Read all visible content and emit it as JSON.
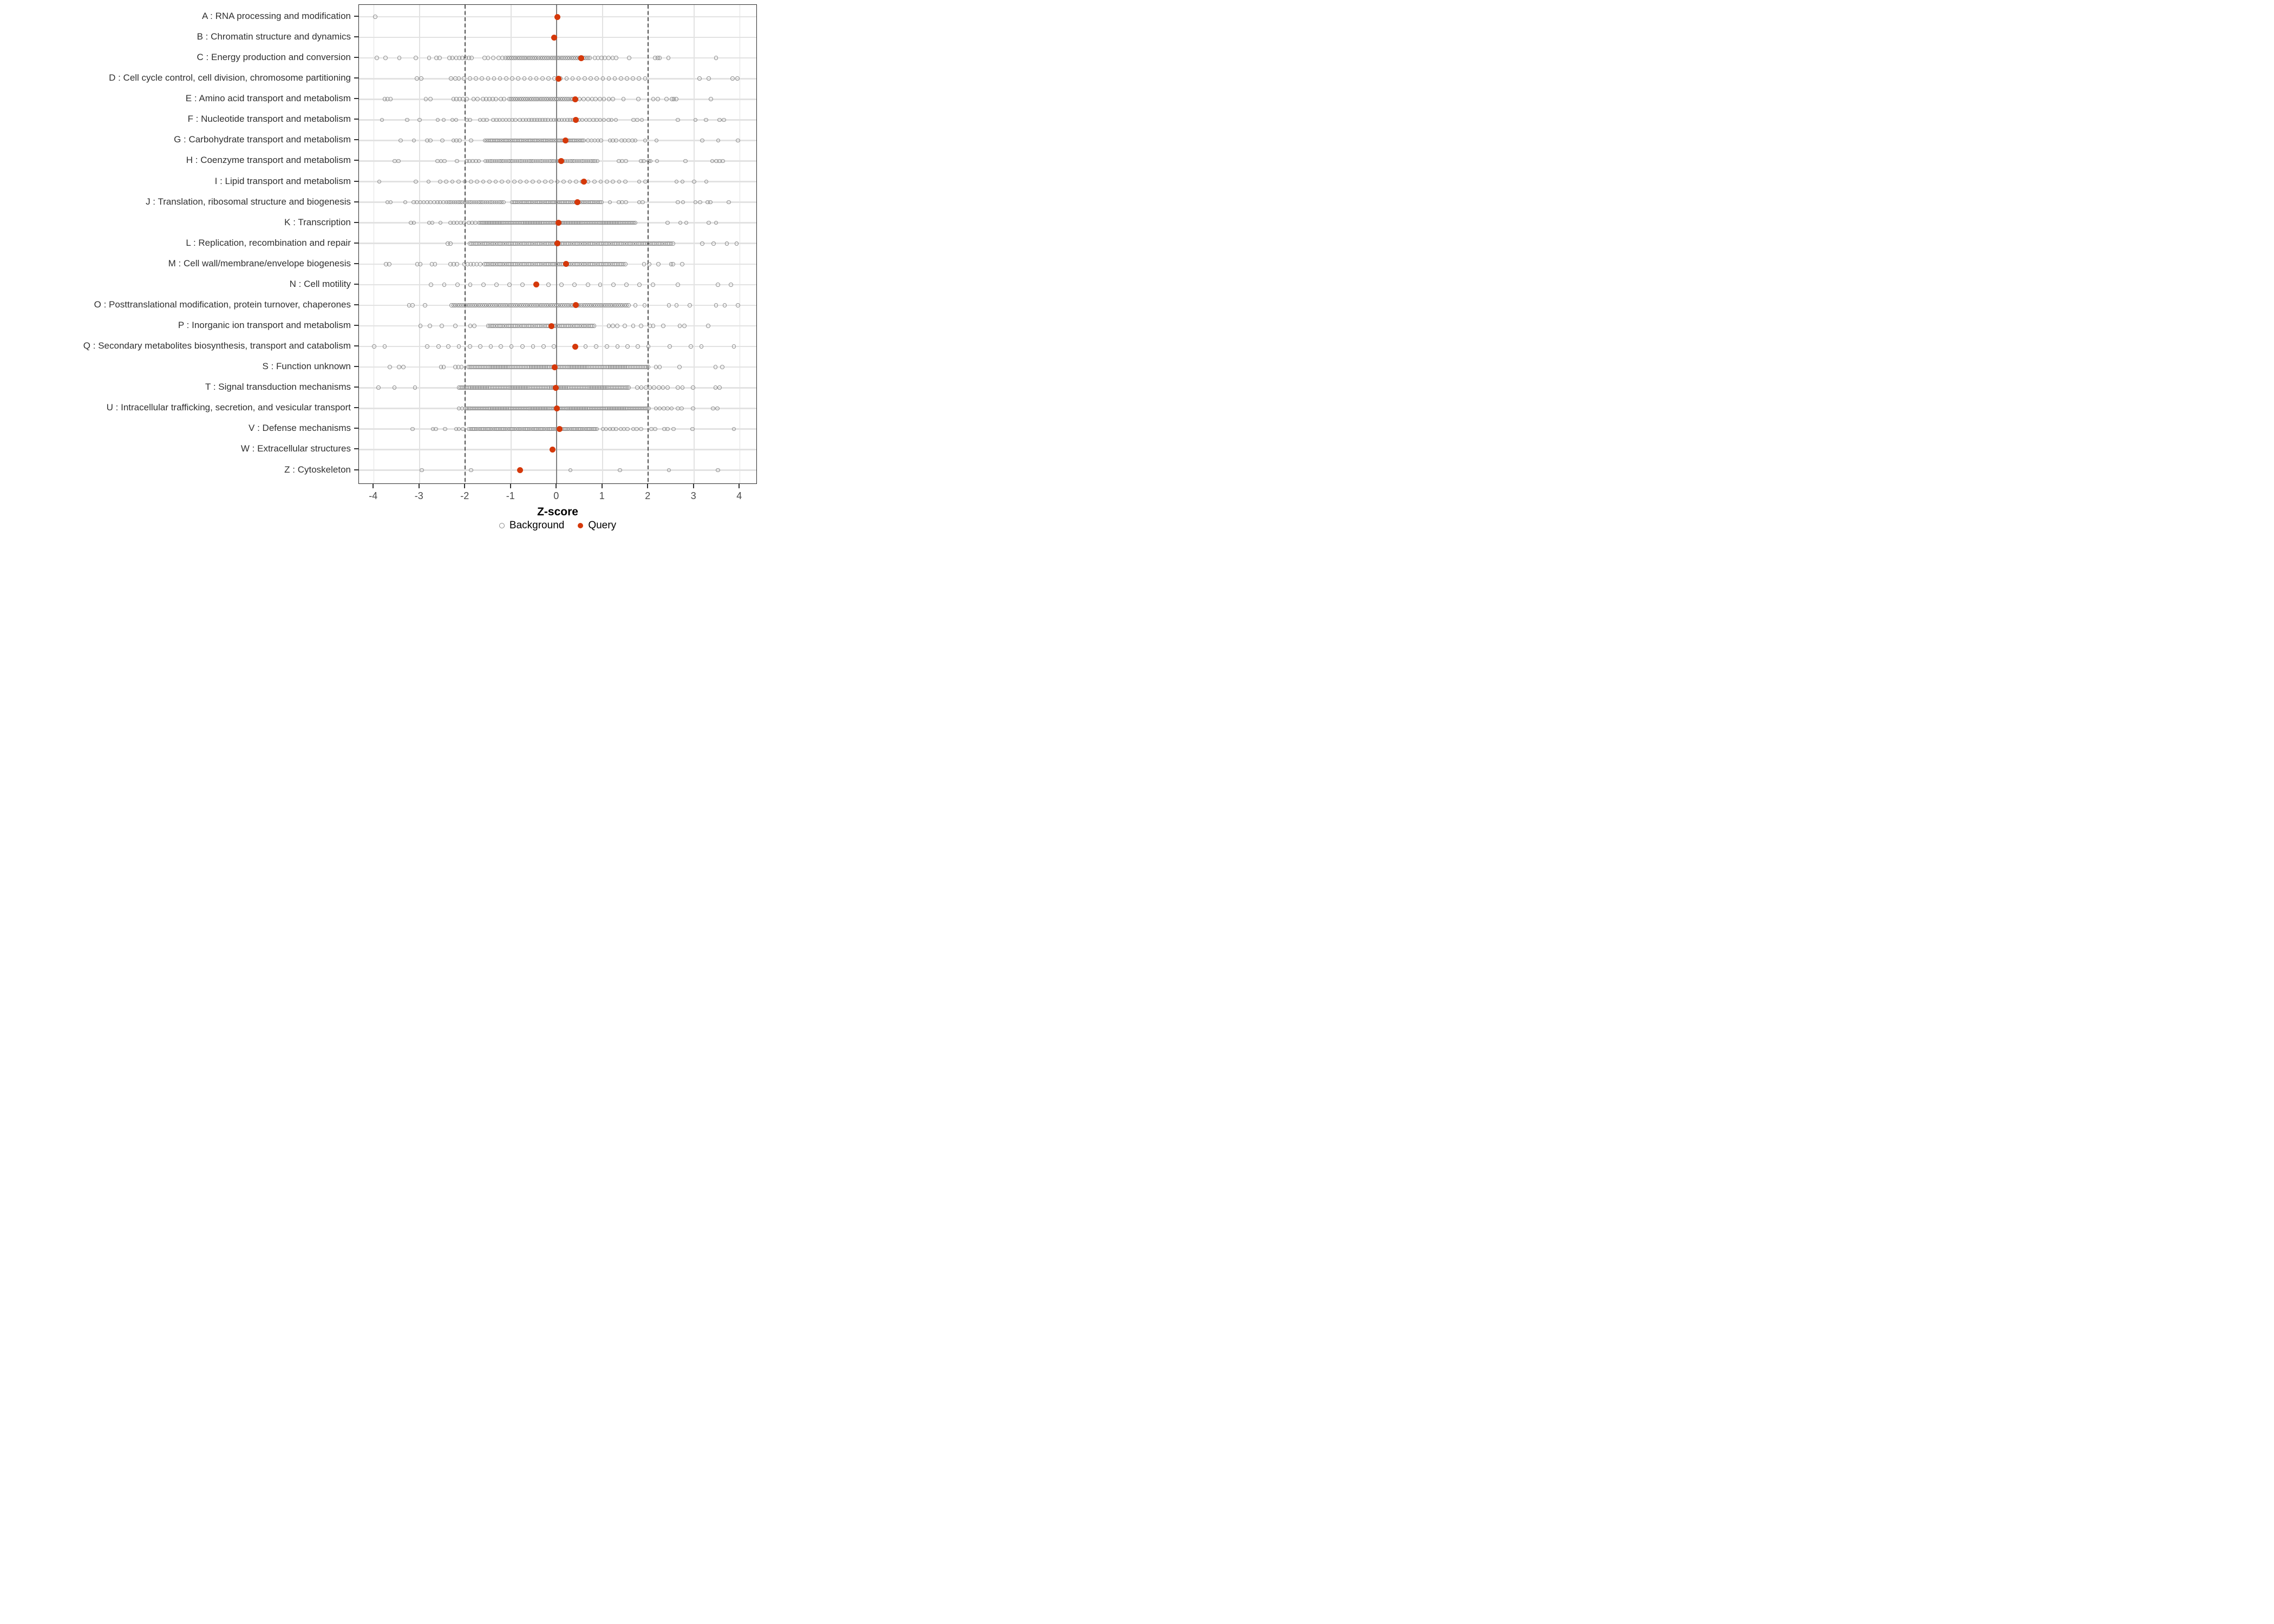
{
  "legend": {
    "background_label": "Background",
    "query_label": "Query"
  },
  "colors": {
    "query": "#d5380a",
    "background_stroke": "#8b8b8b",
    "grid": "#e2e2e2",
    "zero_line": "#808080",
    "dashed_line": "#4f4f4f",
    "panel_border": "#2b2b2b",
    "tick_text": "#4a4a4a",
    "category_text": "#303030"
  },
  "chart_data": {
    "type": "scatter",
    "subtype": "horizontal-strip-dotplot",
    "xlabel": "Z-score",
    "x_ticks": [
      -4,
      -3,
      -2,
      -1,
      0,
      1,
      2,
      3,
      4
    ],
    "x_domain": [
      -4.32,
      4.39
    ],
    "grid": "on",
    "legend_position": "bottom-center",
    "reference_lines": {
      "solid_at": 0,
      "dashed_at": [
        -2,
        2
      ]
    },
    "series_names": [
      "Background",
      "Query"
    ],
    "rows": [
      {
        "label": "A : RNA processing and modification",
        "query": 0.01,
        "bg": [
          -3.97
        ],
        "bg_runs": []
      },
      {
        "label": "B : Chromatin structure and dynamics",
        "query": -0.06,
        "bg": [],
        "bg_runs": []
      },
      {
        "label": "C : Energy production and conversion",
        "query": 0.53,
        "bg": [
          -3.93,
          -3.74,
          -3.44,
          -3.08,
          -2.79,
          -2.63,
          -2.56,
          -2.35,
          -2.28,
          -2.2,
          -2.13,
          -2.06,
          -1.99,
          -1.92,
          -1.86,
          -1.58,
          -1.5,
          -1.39,
          -1.27,
          -1.19,
          0.83,
          0.9,
          0.98,
          1.05,
          1.13,
          1.22,
          1.3,
          1.58,
          2.15,
          2.21,
          2.25,
          2.44,
          3.48
        ],
        "bg_runs": [
          [
            -1.12,
            0.76,
            0.045
          ]
        ]
      },
      {
        "label": "D : Cell cycle control, cell division, chromosome partitioning",
        "query": 0.04,
        "bg": [
          -3.06,
          -2.96,
          -2.31,
          -2.22,
          -2.14,
          3.12,
          3.32,
          3.84,
          3.95
        ],
        "bg_runs": [
          [
            -2.03,
            1.99,
            0.132
          ]
        ]
      },
      {
        "label": "E : Amino acid transport and metabolism",
        "query": 0.4,
        "bg": [
          -3.76,
          -3.7,
          -3.63,
          -2.86,
          -2.76,
          -2.26,
          -2.19,
          -2.12,
          -2.05,
          -1.97,
          -1.82,
          -1.73,
          -1.61,
          -1.54,
          -1.47,
          -1.4,
          -1.33,
          -1.22,
          -1.15,
          0.5,
          0.59,
          0.68,
          0.77,
          0.85,
          0.94,
          1.03,
          1.14,
          1.23,
          1.46,
          1.78,
          2.11,
          2.21,
          2.4,
          2.52,
          2.56,
          2.61,
          3.37
        ],
        "bg_runs": [
          [
            -1.04,
            0.39,
            0.045
          ]
        ]
      },
      {
        "label": "F : Nucleotide transport and metabolism",
        "query": 0.42,
        "bg": [
          -3.82,
          -3.27,
          -3.0,
          -2.6,
          -2.47,
          -2.28,
          -2.2,
          -1.97,
          -1.9,
          -1.68,
          -1.6,
          -1.53,
          -1.39,
          -1.32,
          -1.25,
          -1.18,
          -1.11,
          -1.04,
          -0.97,
          -0.9,
          -0.81,
          -0.74,
          0.49,
          0.56,
          0.64,
          0.72,
          0.8,
          0.87,
          0.95,
          1.03,
          1.13,
          1.2,
          1.29,
          1.68,
          1.76,
          1.86,
          2.65,
          3.03,
          3.26,
          3.56,
          3.65
        ],
        "bg_runs": [
          [
            -0.67,
            0.35,
            0.06
          ]
        ]
      },
      {
        "label": "G : Carbohydrate transport and metabolism",
        "query": 0.19,
        "bg": [
          -3.41,
          -3.12,
          -2.83,
          -2.76,
          -2.5,
          -2.26,
          -2.19,
          -2.12,
          -1.87,
          0.68,
          0.76,
          0.83,
          0.9,
          0.97,
          1.16,
          1.23,
          1.3,
          1.42,
          1.49,
          1.57,
          1.65,
          1.72,
          1.93,
          2.18,
          3.18,
          3.53,
          3.96
        ],
        "bg_runs": [
          [
            -1.57,
            0.59,
            0.04
          ]
        ]
      },
      {
        "label": "H : Coenzyme transport and metabolism",
        "query": 0.1,
        "bg": [
          -3.54,
          -3.46,
          -2.61,
          -2.53,
          -2.45,
          -2.18,
          -1.97,
          -1.91,
          -1.84,
          -1.77,
          -1.7,
          1.36,
          1.43,
          1.51,
          1.84,
          1.9,
          2.01,
          2.05,
          2.19,
          2.81,
          3.4,
          3.49,
          3.56,
          3.63
        ],
        "bg_runs": [
          [
            -1.56,
            0.91,
            0.05
          ]
        ]
      },
      {
        "label": "I : Lipid transport and metabolism",
        "query": 0.59,
        "bg": [
          -3.88,
          -3.08,
          -2.8,
          1.8,
          1.94,
          2.62,
          2.75,
          3.0,
          3.27
        ],
        "bg_runs": [
          [
            -2.55,
            1.55,
            0.135
          ]
        ]
      },
      {
        "label": "J : Translation, ribosomal structure and biogenesis",
        "query": 0.45,
        "bg": [
          -3.7,
          -3.63,
          -3.31,
          -3.13,
          -3.06,
          -2.98,
          -2.91,
          -2.83,
          -2.76,
          -2.68,
          -2.61,
          -2.55,
          -2.48,
          1.16,
          1.36,
          1.43,
          1.51,
          1.8,
          1.88,
          2.65,
          2.76,
          3.03,
          3.13,
          3.3,
          3.36,
          3.76
        ],
        "bg_runs": [
          [
            -2.41,
            -1.12,
            0.05
          ],
          [
            -0.98,
            1.0,
            0.04
          ]
        ]
      },
      {
        "label": "K : Transcription",
        "query": 0.04,
        "bg": [
          -3.19,
          -3.12,
          -2.79,
          -2.72,
          -2.54,
          -2.32,
          -2.25,
          -2.18,
          -2.1,
          -2.03,
          -1.92,
          -1.85,
          -1.78,
          2.42,
          2.7,
          2.83,
          3.32,
          3.48
        ],
        "bg_runs": [
          [
            -1.7,
            1.75,
            0.036
          ]
        ]
      },
      {
        "label": "L : Replication, recombination and repair",
        "query": 0.02,
        "bg": [
          -2.38,
          -2.32,
          3.18,
          3.43,
          3.72,
          3.93
        ],
        "bg_runs": [
          [
            -1.9,
            2.55,
            0.04
          ]
        ]
      },
      {
        "label": "M : Cell wall/membrane/envelope biogenesis",
        "query": 0.2,
        "bg": [
          -3.73,
          -3.66,
          -3.05,
          -2.98,
          -2.73,
          -2.66,
          -2.32,
          -2.25,
          -2.18,
          -2.02,
          -1.95,
          -1.88,
          -1.82,
          -1.75,
          -1.67,
          1.91,
          2.02,
          2.22,
          2.5,
          2.54,
          2.74
        ],
        "bg_runs": [
          [
            -1.58,
            1.52,
            0.04
          ]
        ]
      },
      {
        "label": "N : Cell motility",
        "query": -0.45,
        "bg": [
          -2.75,
          -2.46,
          -2.17,
          -1.89,
          -1.6,
          -1.32,
          -1.03,
          -0.75,
          -0.18,
          0.1,
          0.39,
          0.68,
          0.95,
          1.24,
          1.52,
          1.81,
          2.1,
          2.65,
          3.52,
          3.81
        ],
        "bg_runs": []
      },
      {
        "label": "O : Posttranslational modification, protein turnover, chaperones",
        "query": 0.42,
        "bg": [
          -3.23,
          -3.15,
          -2.88,
          1.72,
          1.92,
          2.45,
          2.62,
          2.91,
          3.48,
          3.67,
          3.96
        ],
        "bg_runs": [
          [
            -2.3,
            1.61,
            0.045
          ]
        ]
      },
      {
        "label": "P : Inorganic ion transport and metabolism",
        "query": -0.12,
        "bg": [
          -2.98,
          -2.77,
          -2.51,
          -2.22,
          -1.89,
          -1.8,
          1.14,
          1.23,
          1.32,
          1.49,
          1.67,
          1.84,
          2.04,
          2.11,
          2.33,
          2.69,
          2.79,
          3.31
        ],
        "bg_runs": [
          [
            -1.5,
            0.85,
            0.04
          ]
        ]
      },
      {
        "label": "Q : Secondary metabolites biosynthesis, transport and catabolism",
        "query": 0.4,
        "bg": [
          -3.99,
          -3.76,
          -2.83,
          -2.58,
          -2.37,
          -2.14,
          -1.9,
          -1.67,
          -1.44,
          -1.22,
          -0.99,
          -0.75,
          -0.52,
          -0.29,
          -0.06,
          0.63,
          0.86,
          1.1,
          1.33,
          1.55,
          1.77,
          2.0,
          2.47,
          2.93,
          3.16,
          3.87
        ],
        "bg_runs": []
      },
      {
        "label": "S : Function unknown",
        "query": -0.05,
        "bg": [
          -3.65,
          -3.45,
          -3.35,
          -2.53,
          -2.47,
          -2.22,
          -2.15,
          -2.08,
          2.17,
          2.25,
          2.68,
          3.47,
          3.62
        ],
        "bg_runs": [
          [
            -1.93,
            2.01,
            0.036
          ]
        ]
      },
      {
        "label": "T : Signal transduction mechanisms",
        "query": -0.02,
        "bg": [
          -3.9,
          -3.55,
          -3.1,
          1.76,
          1.85,
          1.95,
          2.04,
          2.13,
          2.23,
          2.32,
          2.42,
          2.65,
          2.75,
          2.98,
          3.47,
          3.56
        ],
        "bg_runs": [
          [
            -2.14,
            1.58,
            0.036
          ]
        ]
      },
      {
        "label": "U : Intracellular trafficking, secretion, and vesicular transport",
        "query": 0.0,
        "bg": [
          -2.14,
          -2.07,
          2.17,
          2.25,
          2.34,
          2.42,
          2.51,
          2.65,
          2.73,
          2.98,
          3.42,
          3.51
        ],
        "bg_runs": [
          [
            -1.99,
            2.01,
            0.036
          ]
        ]
      },
      {
        "label": "V : Defense mechanisms",
        "query": 0.06,
        "bg": [
          -3.15,
          -2.71,
          -2.64,
          -2.44,
          -2.2,
          -2.14,
          -2.05,
          1.01,
          1.08,
          1.16,
          1.23,
          1.3,
          1.4,
          1.47,
          1.55,
          1.67,
          1.75,
          1.84,
          2.07,
          2.15,
          2.35,
          2.42,
          2.55,
          2.97,
          3.87
        ],
        "bg_runs": [
          [
            -1.92,
            0.88,
            0.04
          ]
        ]
      },
      {
        "label": "W : Extracellular structures",
        "query": -0.09,
        "bg": [],
        "bg_runs": []
      },
      {
        "label": "Z : Cytoskeleton",
        "query": -0.8,
        "bg": [
          -2.95,
          -1.87,
          0.3,
          1.38,
          2.45,
          3.52
        ],
        "bg_runs": []
      }
    ]
  }
}
